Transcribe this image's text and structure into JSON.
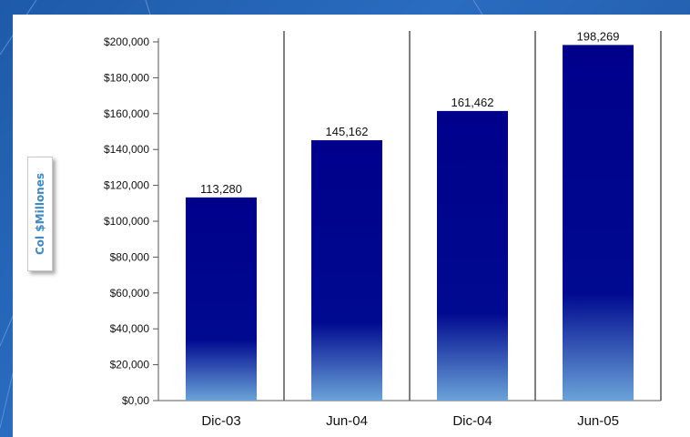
{
  "chart_data": {
    "type": "bar",
    "categories": [
      "Dic-03",
      "Jun-04",
      "Dic-04",
      "Jun-05"
    ],
    "values": [
      113280,
      145162,
      161462,
      198269
    ],
    "data_labels": [
      "113,280",
      "145,162",
      "161,462",
      "198,269"
    ],
    "ylabel": "Col $Millones",
    "xlabel": "",
    "title": "",
    "ylim": [
      0,
      200000
    ],
    "yticks": [
      0,
      20000,
      40000,
      60000,
      80000,
      100000,
      120000,
      140000,
      160000,
      180000,
      200000
    ],
    "ytick_labels": [
      "$0,00",
      "$20,000",
      "$40,000",
      "$60,000",
      "$80,000",
      "$100,000",
      "$120,000",
      "$140,000",
      "$160,000",
      "$180,000",
      "$200,000"
    ],
    "grid": false,
    "separators_between_categories": true,
    "colors": {
      "bar_top": "#00008b",
      "bar_bottom": "#6aa3d8",
      "axis": "#555555"
    }
  }
}
